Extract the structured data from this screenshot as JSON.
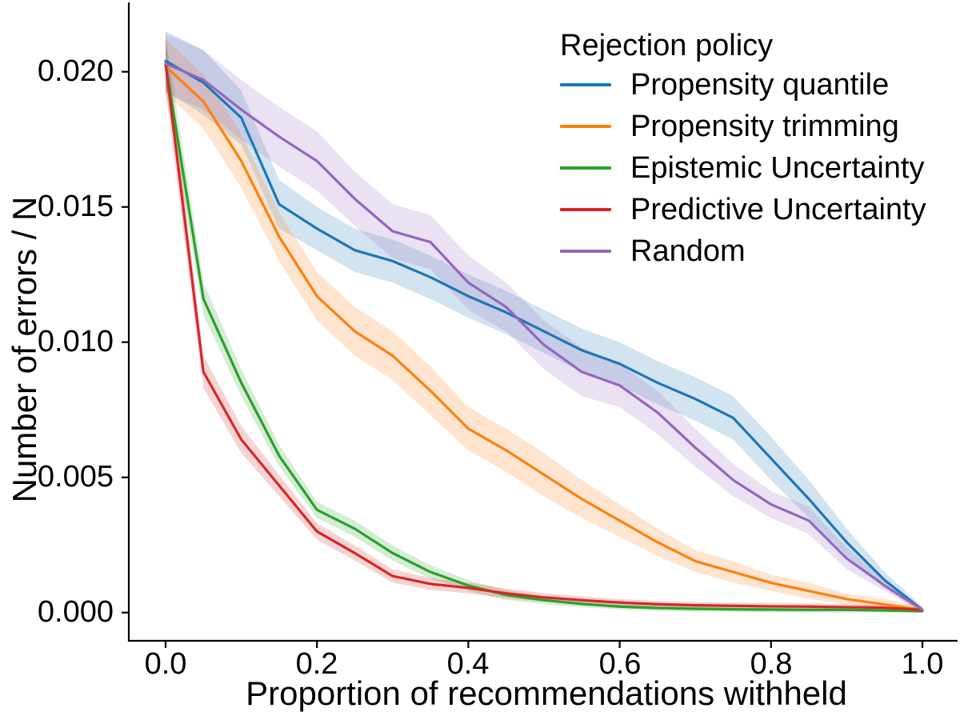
{
  "figure": {
    "background": "#ffffff"
  },
  "axes": {
    "x_label": "Proportion of recommendations withheld",
    "y_label": "Number of errors / N",
    "x_tick_labels": [
      "0.0",
      "0.2",
      "0.4",
      "0.6",
      "0.8",
      "1.0"
    ],
    "x_tick_values": [
      0.0,
      0.2,
      0.4,
      0.6,
      0.8,
      1.0
    ],
    "y_tick_labels": [
      "0.000",
      "0.005",
      "0.010",
      "0.015",
      "0.020"
    ],
    "y_tick_values": [
      0.0,
      0.005,
      0.01,
      0.015,
      0.02
    ],
    "spine_color": "#000000",
    "text_color": "#000000"
  },
  "legend": {
    "title": "Rejection policy",
    "items": [
      {
        "label": "Propensity quantile",
        "color": "#1f77b4"
      },
      {
        "label": "Propensity trimming",
        "color": "#ff7f0e"
      },
      {
        "label": "Epistemic Uncertainty",
        "color": "#2ca02c"
      },
      {
        "label": "Predictive Uncertainty",
        "color": "#d62728"
      },
      {
        "label": "Random",
        "color": "#9467bd"
      }
    ]
  },
  "chart_data": {
    "type": "line",
    "title": "",
    "xlabel": "Proportion of recommendations withheld",
    "ylabel": "Number of errors / N",
    "xlim": [
      -0.0486,
      1.0465
    ],
    "ylim": [
      -0.001044,
      0.022565
    ],
    "grid": false,
    "legend_position": "upper right",
    "legend_title": "Rejection policy",
    "band_opacity": 0.2,
    "x": [
      0.0,
      0.05,
      0.1,
      0.15,
      0.2,
      0.25,
      0.3,
      0.35,
      0.4,
      0.45,
      0.5,
      0.55,
      0.6,
      0.65,
      0.7,
      0.75,
      0.8,
      0.85,
      0.9,
      0.95,
      1.0
    ],
    "series": [
      {
        "name": "Propensity quantile",
        "color": "#1f77b4",
        "values": [
          0.0204,
          0.0196,
          0.0183,
          0.0151,
          0.0142,
          0.0134,
          0.013,
          0.0124,
          0.0117,
          0.0111,
          0.0104,
          0.0097,
          0.0092,
          0.0085,
          0.0079,
          0.0072,
          0.0057,
          0.0042,
          0.0026,
          0.0012,
          0.0001
        ],
        "band_halfwidth": [
          0.0011,
          0.0012,
          0.001,
          0.0009,
          0.0008,
          0.0008,
          0.0008,
          0.0008,
          0.0008,
          0.0008,
          0.0008,
          0.0008,
          0.0008,
          0.0008,
          0.0008,
          0.0008,
          0.0008,
          0.0007,
          0.0005,
          0.0003,
          0.0001
        ]
      },
      {
        "name": "Propensity trimming",
        "color": "#ff7f0e",
        "values": [
          0.0202,
          0.0189,
          0.0167,
          0.0139,
          0.0117,
          0.0104,
          0.0095,
          0.0082,
          0.0068,
          0.006,
          0.0051,
          0.0042,
          0.0034,
          0.0026,
          0.0019,
          0.0015,
          0.0011,
          0.0008,
          0.0005,
          0.0003,
          0.0001
        ],
        "band_halfwidth": [
          0.001,
          0.001,
          0.001,
          0.0009,
          0.0009,
          0.0009,
          0.0009,
          0.0009,
          0.0008,
          0.0008,
          0.0008,
          0.0007,
          0.0006,
          0.0005,
          0.0004,
          0.0004,
          0.0003,
          0.0003,
          0.0002,
          0.0002,
          0.0001
        ]
      },
      {
        "name": "Epistemic Uncertainty",
        "color": "#2ca02c",
        "values": [
          0.0203,
          0.0116,
          0.0085,
          0.0058,
          0.0038,
          0.0031,
          0.0022,
          0.0015,
          0.001,
          0.00065,
          0.00046,
          0.00032,
          0.00022,
          0.00017,
          0.00014,
          0.00012,
          0.00011,
          0.0001,
          0.0001,
          8e-05,
          5e-05
        ],
        "band_halfwidth": [
          0.001,
          0.0006,
          0.0005,
          0.0004,
          0.0003,
          0.0003,
          0.00028,
          0.00025,
          0.0002,
          0.00018,
          0.00015,
          0.00012,
          0.0001,
          0.0001,
          0.0001,
          0.0001,
          0.0001,
          0.0001,
          0.0001,
          8e-05,
          5e-05
        ]
      },
      {
        "name": "Predictive Uncertainty",
        "color": "#d62728",
        "values": [
          0.0203,
          0.0089,
          0.0064,
          0.0047,
          0.003,
          0.0022,
          0.00135,
          0.00106,
          0.00091,
          0.00071,
          0.00056,
          0.00046,
          0.00037,
          0.00031,
          0.00027,
          0.00025,
          0.00023,
          0.00022,
          0.0002,
          0.00018,
          0.0001
        ],
        "band_halfwidth": [
          0.001,
          0.0006,
          0.0005,
          0.0004,
          0.0003,
          0.00028,
          0.00025,
          0.00022,
          0.0002,
          0.00018,
          0.00016,
          0.00014,
          0.00013,
          0.00012,
          0.00012,
          0.00012,
          0.00012,
          0.00012,
          0.00011,
          0.0001,
          5e-05
        ]
      },
      {
        "name": "Random",
        "color": "#9467bd",
        "values": [
          0.0203,
          0.0197,
          0.0186,
          0.0176,
          0.0167,
          0.0153,
          0.0141,
          0.0137,
          0.0122,
          0.0113,
          0.0099,
          0.0089,
          0.0084,
          0.0074,
          0.0061,
          0.0049,
          0.004,
          0.0034,
          0.002,
          0.001,
          0.0001
        ],
        "band_halfwidth": [
          0.0011,
          0.0011,
          0.0011,
          0.0011,
          0.0011,
          0.001,
          0.001,
          0.001,
          0.001,
          0.0009,
          0.0009,
          0.0009,
          0.0008,
          0.0008,
          0.0007,
          0.0006,
          0.0005,
          0.0005,
          0.0004,
          0.0002,
          0.0001
        ]
      }
    ]
  }
}
